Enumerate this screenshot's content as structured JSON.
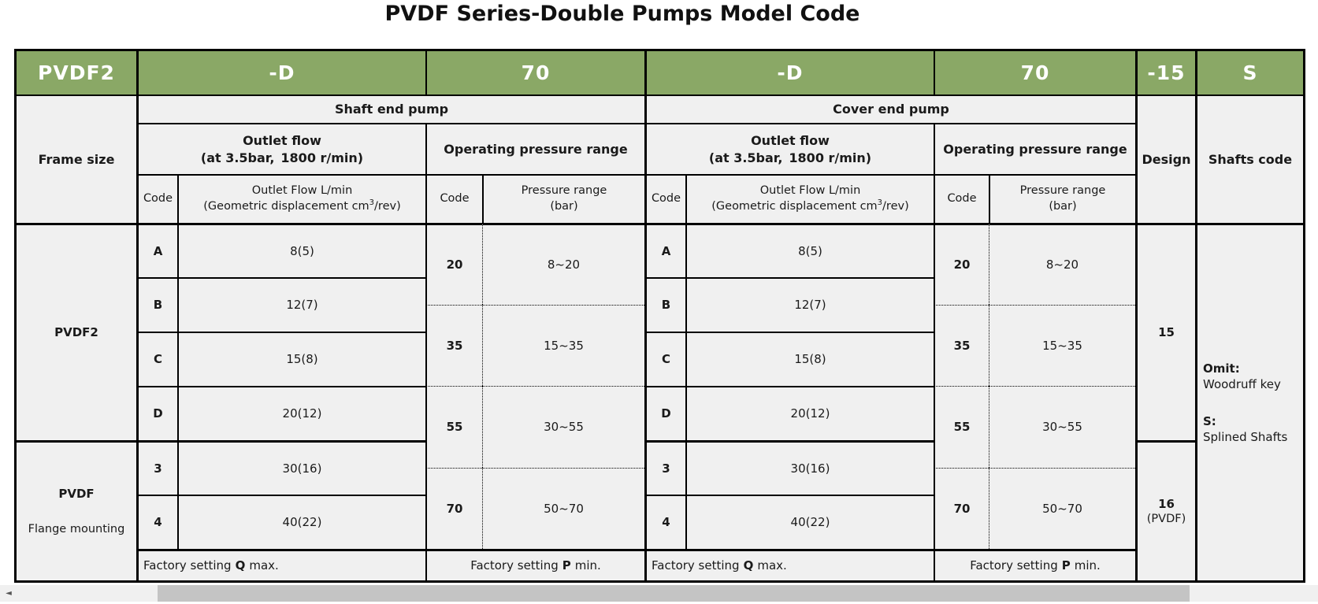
{
  "title": "PVDF Series-Double Pumps Model Code",
  "colors": {
    "header_green": "#8aa866",
    "cell_bg": "#f0f0f0",
    "border": "#000000",
    "scroll_track": "#f0f0f0",
    "scroll_thumb": "#c4c4c4"
  },
  "model_code": {
    "frame": "PVDF2",
    "shaft_outlet": "-D",
    "shaft_pressure": "70",
    "cover_outlet": "-D",
    "cover_pressure": "70",
    "design": "-15",
    "shafts": "S"
  },
  "headers": {
    "frame_size": "Frame size",
    "design": "Design",
    "shafts_code": "Shafts code",
    "code": "Code",
    "outlet_flow_title": "Outlet flow",
    "outlet_flow_cond": "(at 3.5bar, 1800 r/min)",
    "pressure_title": "Operating pressure range",
    "flow_unit_line1": "Outlet Flow L/min",
    "flow_unit_prefix": "(Geometric displacement cm",
    "flow_unit_sup": "3",
    "flow_unit_suffix": "/rev)",
    "pressure_unit_line1": "Pressure range",
    "pressure_unit_line2": "(bar)"
  },
  "pumps": [
    {
      "name": "Shaft end pump",
      "flow_rows": [
        {
          "code": "A",
          "flow": "8(5)"
        },
        {
          "code": "B",
          "flow": "12(7)"
        },
        {
          "code": "C",
          "flow": "15(8)"
        },
        {
          "code": "D",
          "flow": "20(12)"
        },
        {
          "code": "3",
          "flow": "30(16)"
        },
        {
          "code": "4",
          "flow": "40(22)"
        }
      ],
      "pressure_blocks": [
        {
          "code": "20",
          "range": "8~20"
        },
        {
          "code": "35",
          "range": "15~35"
        },
        {
          "code": "55",
          "range": "30~55"
        },
        {
          "code": "70",
          "range": "50~70"
        }
      ],
      "factory_q": {
        "pre": "Factory setting",
        "key": "Q",
        "post": "max."
      },
      "factory_p": {
        "pre": "Factory setting",
        "key": "P",
        "post": "min."
      }
    },
    {
      "name": "Cover end pump",
      "flow_rows": [
        {
          "code": "A",
          "flow": "8(5)"
        },
        {
          "code": "B",
          "flow": "12(7)"
        },
        {
          "code": "C",
          "flow": "15(8)"
        },
        {
          "code": "D",
          "flow": "20(12)"
        },
        {
          "code": "3",
          "flow": "30(16)"
        },
        {
          "code": "4",
          "flow": "40(22)"
        }
      ],
      "pressure_blocks": [
        {
          "code": "20",
          "range": "8~20"
        },
        {
          "code": "35",
          "range": "15~35"
        },
        {
          "code": "55",
          "range": "30~55"
        },
        {
          "code": "70",
          "range": "50~70"
        }
      ],
      "factory_q": {
        "pre": "Factory setting",
        "key": "Q",
        "post": "max."
      },
      "factory_p": {
        "pre": "Factory setting",
        "key": "P",
        "post": "min."
      }
    }
  ],
  "frame_rows": [
    {
      "title": "PVDF2",
      "sub": ""
    },
    {
      "title": "PVDF",
      "sub": "Flange mounting"
    }
  ],
  "design_rows": [
    {
      "value": "15",
      "sub": ""
    },
    {
      "value": "16",
      "sub": "(PVDF)"
    }
  ],
  "shafts_info": {
    "omit_label": "Omit:",
    "omit_text": "Woodruff key",
    "s_label": "S:",
    "s_text": "Splined Shafts"
  },
  "scrollbar": {
    "left_arrow": "◄"
  }
}
